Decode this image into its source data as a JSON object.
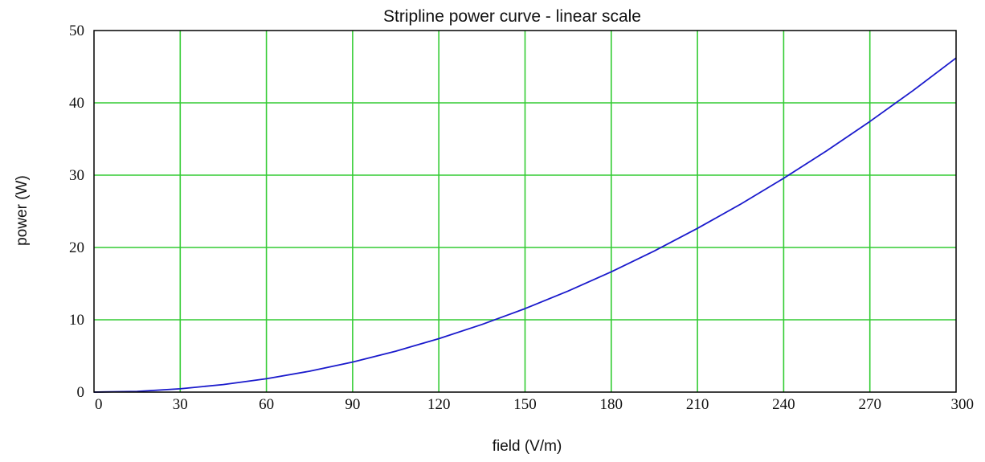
{
  "chart_data": {
    "type": "line",
    "title": "Stripline power curve - linear scale",
    "xlabel": "field (V/m)",
    "ylabel": "power (W)",
    "xlim": [
      0,
      300
    ],
    "ylim": [
      0,
      50
    ],
    "xticks": [
      "0",
      "30",
      "60",
      "90",
      "120",
      "150",
      "180",
      "210",
      "240",
      "270",
      "300"
    ],
    "yticks": [
      "0",
      "10",
      "20",
      "30",
      "40",
      "50"
    ],
    "grid": true,
    "grid_color": "#33cc33",
    "series": [
      {
        "name": "",
        "color": "#1a1acc",
        "x": [
          0,
          15,
          30,
          45,
          60,
          75,
          90,
          105,
          120,
          135,
          150,
          165,
          180,
          195,
          210,
          225,
          240,
          255,
          270,
          285,
          300
        ],
        "y": [
          0,
          0.1,
          0.46,
          1.04,
          1.85,
          2.89,
          4.16,
          5.66,
          7.39,
          9.36,
          11.55,
          13.98,
          16.63,
          19.52,
          22.64,
          25.99,
          29.57,
          33.38,
          37.42,
          41.69,
          46.2
        ]
      }
    ]
  }
}
